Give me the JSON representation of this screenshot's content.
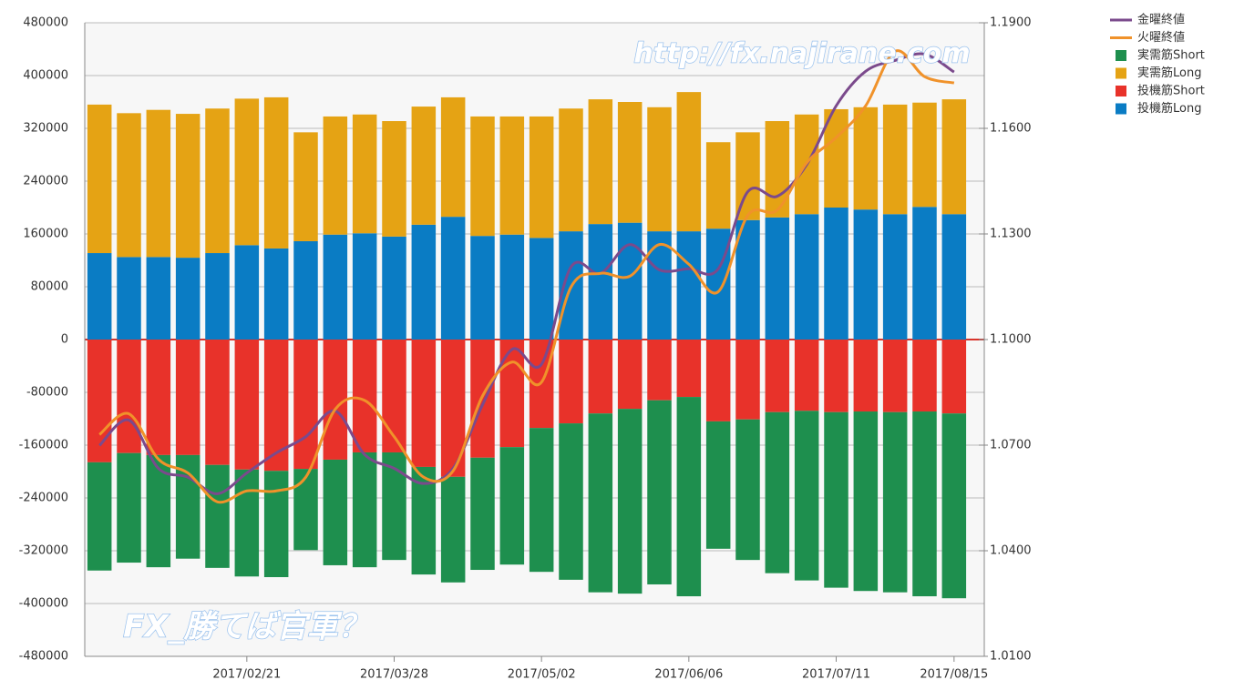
{
  "chart_data": {
    "type": "bar",
    "annotations": [
      "http://fx.najirane.com",
      "FX_勝てば官軍？"
    ],
    "categories": [
      null,
      null,
      null,
      null,
      null,
      "2017/02/21",
      null,
      null,
      null,
      null,
      "2017/03/28",
      null,
      null,
      null,
      null,
      "2017/05/02",
      null,
      null,
      null,
      null,
      "2017/06/06",
      null,
      null,
      null,
      null,
      "2017/07/11",
      null,
      null,
      null,
      "2017/08/15"
    ],
    "series": [
      {
        "name": "金曜終値",
        "type": "line",
        "axis": "y2",
        "color": "#7b4a8c",
        "values": [
          1.0699,
          1.0771,
          1.0634,
          1.0609,
          1.0562,
          1.0621,
          1.0678,
          1.0724,
          1.0797,
          1.0673,
          1.0634,
          1.0591,
          1.0634,
          1.0815,
          1.0972,
          1.093,
          1.1206,
          1.1188,
          1.127,
          1.1198,
          1.1201,
          1.1201,
          1.142,
          1.1407,
          1.1497,
          1.1664,
          1.1762,
          1.1793,
          1.1811,
          1.176
        ]
      },
      {
        "name": "火曜終値",
        "type": "line",
        "axis": "y2",
        "color": "#f0922a",
        "values": [
          1.073,
          1.0789,
          1.066,
          1.0621,
          1.0539,
          1.057,
          1.057,
          1.0609,
          1.0802,
          1.0827,
          1.0724,
          1.0609,
          1.0627,
          1.084,
          1.0936,
          1.0879,
          1.1149,
          1.1188,
          1.118,
          1.127,
          1.1214,
          1.1136,
          1.1353,
          1.1368,
          1.1502,
          1.1574,
          1.1664,
          1.1819,
          1.1747,
          1.1729
        ]
      },
      {
        "name": "実需筋Short",
        "type": "bar",
        "color": "#1e8f4e",
        "values": [
          -164000,
          -166000,
          -170000,
          -157000,
          -156000,
          -162000,
          -161000,
          -123000,
          -160000,
          -174000,
          -163000,
          -163000,
          -160000,
          -170000,
          -178000,
          -218000,
          -237000,
          -271000,
          -280000,
          -279000,
          -302000,
          -193000,
          -213000,
          -244000,
          -257000,
          -266000,
          -272000,
          -273000,
          -280000,
          -280000
        ]
      },
      {
        "name": "実需筋Long",
        "type": "bar",
        "color": "#e5a314",
        "values": [
          225000,
          218000,
          223000,
          218000,
          219000,
          222000,
          229000,
          165000,
          179000,
          180000,
          175000,
          179000,
          181000,
          181000,
          179000,
          184000,
          186000,
          189000,
          183000,
          188000,
          211000,
          131000,
          133000,
          146000,
          151000,
          149000,
          155000,
          166000,
          158000,
          174000
        ]
      },
      {
        "name": "投機筋Short",
        "type": "bar",
        "color": "#e8322a",
        "values": [
          -186000,
          -172000,
          -175000,
          -175000,
          -190000,
          -197000,
          -199000,
          -196000,
          -182000,
          -171000,
          -171000,
          -193000,
          -208000,
          -179000,
          -163000,
          -134000,
          -127000,
          -112000,
          -105000,
          -92000,
          -87000,
          -124000,
          -121000,
          -110000,
          -108000,
          -110000,
          -109000,
          -110000,
          -109000,
          -112000
        ]
      },
      {
        "name": "投機筋Long",
        "type": "bar",
        "color": "#0a7cc4",
        "values": [
          131000,
          125000,
          125000,
          124000,
          131000,
          143000,
          138000,
          149000,
          159000,
          161000,
          156000,
          174000,
          186000,
          157000,
          159000,
          154000,
          164000,
          175000,
          177000,
          164000,
          164000,
          168000,
          181000,
          185000,
          190000,
          200000,
          197000,
          190000,
          201000,
          190000
        ]
      }
    ],
    "ylim": [
      -480000,
      480000
    ],
    "yticks": [
      -480000,
      -400000,
      -320000,
      -240000,
      -160000,
      -80000,
      0,
      80000,
      160000,
      240000,
      320000,
      400000,
      480000
    ],
    "y2lim": [
      1.01,
      1.19
    ],
    "y2ticks": [
      {
        "value": 1.01,
        "label": "1.0100"
      },
      {
        "value": 1.04,
        "label": "1.0400"
      },
      {
        "value": 1.07,
        "label": "1.0700"
      },
      {
        "value": 1.1,
        "label": "1.1000"
      },
      {
        "value": 1.13,
        "label": "1.1300"
      },
      {
        "value": 1.16,
        "label": "1.1600"
      },
      {
        "value": 1.19,
        "label": "1.1900"
      }
    ],
    "grid": true,
    "legend": "outside-right-top"
  }
}
